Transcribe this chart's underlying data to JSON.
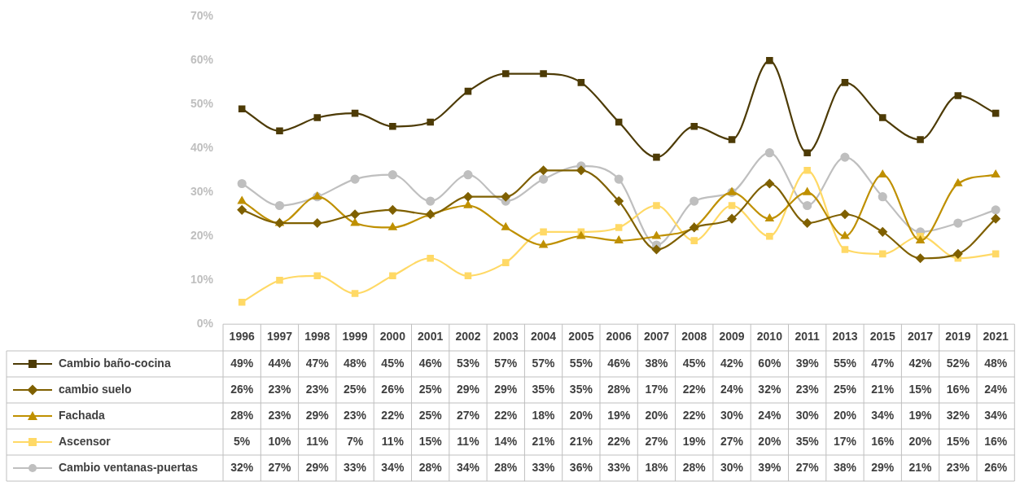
{
  "chart_data": {
    "type": "line",
    "categories": [
      "1996",
      "1997",
      "1998",
      "1999",
      "2000",
      "2001",
      "2002",
      "2003",
      "2004",
      "2005",
      "2006",
      "2007",
      "2008",
      "2009",
      "2010",
      "2011",
      "2013",
      "2015",
      "2017",
      "2019",
      "2021"
    ],
    "ylim": [
      0,
      70
    ],
    "yticks": [
      {
        "value": 0,
        "label": "0%"
      },
      {
        "value": 10,
        "label": "10%"
      },
      {
        "value": 20,
        "label": "20%"
      },
      {
        "value": 30,
        "label": "30%"
      },
      {
        "value": 40,
        "label": "40%"
      },
      {
        "value": 50,
        "label": "50%"
      },
      {
        "value": 60,
        "label": "60%"
      },
      {
        "value": 70,
        "label": "70%"
      }
    ],
    "grid": false,
    "legend": "bottom",
    "series": [
      {
        "name": "Cambio baño-cocina",
        "color": "#4d3b06",
        "marker": "square",
        "values": [
          49,
          44,
          47,
          48,
          45,
          46,
          53,
          57,
          57,
          55,
          46,
          38,
          45,
          42,
          60,
          39,
          55,
          47,
          42,
          52,
          48
        ],
        "value_labels": [
          "49%",
          "44%",
          "47%",
          "48%",
          "45%",
          "46%",
          "53%",
          "57%",
          "57%",
          "55%",
          "46%",
          "38%",
          "45%",
          "42%",
          "60%",
          "39%",
          "55%",
          "47%",
          "42%",
          "52%",
          "48%"
        ]
      },
      {
        "name": "cambio suelo",
        "color": "#7f6000",
        "marker": "diamond",
        "values": [
          26,
          23,
          23,
          25,
          26,
          25,
          29,
          29,
          35,
          35,
          28,
          17,
          22,
          24,
          32,
          23,
          25,
          21,
          15,
          16,
          24
        ],
        "value_labels": [
          "26%",
          "23%",
          "23%",
          "25%",
          "26%",
          "25%",
          "29%",
          "29%",
          "35%",
          "35%",
          "28%",
          "17%",
          "22%",
          "24%",
          "32%",
          "23%",
          "25%",
          "21%",
          "15%",
          "16%",
          "24%"
        ]
      },
      {
        "name": "Fachada",
        "color": "#bf9000",
        "marker": "triangle",
        "values": [
          28,
          23,
          29,
          23,
          22,
          25,
          27,
          22,
          18,
          20,
          19,
          20,
          22,
          30,
          24,
          30,
          20,
          34,
          19,
          32,
          34
        ],
        "value_labels": [
          "28%",
          "23%",
          "29%",
          "23%",
          "22%",
          "25%",
          "27%",
          "22%",
          "18%",
          "20%",
          "19%",
          "20%",
          "22%",
          "30%",
          "24%",
          "30%",
          "20%",
          "34%",
          "19%",
          "32%",
          "34%"
        ]
      },
      {
        "name": "Ascensor",
        "color": "#ffd966",
        "marker": "square",
        "values": [
          5,
          10,
          11,
          7,
          11,
          15,
          11,
          14,
          21,
          21,
          22,
          27,
          19,
          27,
          20,
          35,
          17,
          16,
          20,
          15,
          16
        ],
        "value_labels": [
          "5%",
          "10%",
          "11%",
          "7%",
          "11%",
          "15%",
          "11%",
          "14%",
          "21%",
          "21%",
          "22%",
          "27%",
          "19%",
          "27%",
          "20%",
          "35%",
          "17%",
          "16%",
          "20%",
          "15%",
          "16%"
        ]
      },
      {
        "name": "Cambio ventanas-puertas",
        "color": "#bfbfbf",
        "marker": "circle",
        "values": [
          32,
          27,
          29,
          33,
          34,
          28,
          34,
          28,
          33,
          36,
          33,
          18,
          28,
          30,
          39,
          27,
          38,
          29,
          21,
          23,
          26
        ],
        "value_labels": [
          "32%",
          "27%",
          "29%",
          "33%",
          "34%",
          "28%",
          "34%",
          "28%",
          "33%",
          "36%",
          "33%",
          "18%",
          "28%",
          "30%",
          "39%",
          "27%",
          "38%",
          "29%",
          "21%",
          "23%",
          "26%"
        ]
      }
    ]
  }
}
